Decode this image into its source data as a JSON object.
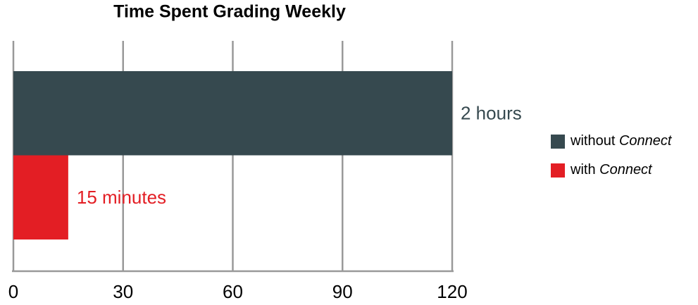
{
  "chart_data": {
    "type": "bar",
    "orientation": "horizontal",
    "title": "Time Spent Grading Weekly",
    "categories": [
      null
    ],
    "series": [
      {
        "name": "without Connect",
        "color": "#36494f",
        "values": [
          120
        ],
        "value_labels": [
          "2 hours"
        ]
      },
      {
        "name": "with Connect",
        "color": "#e31e24",
        "values": [
          15
        ],
        "value_labels": [
          "15 minutes"
        ]
      }
    ],
    "xlim": [
      0,
      120
    ],
    "xticks": [
      0,
      30,
      60,
      90,
      120
    ],
    "grid": true,
    "legend": "right"
  }
}
